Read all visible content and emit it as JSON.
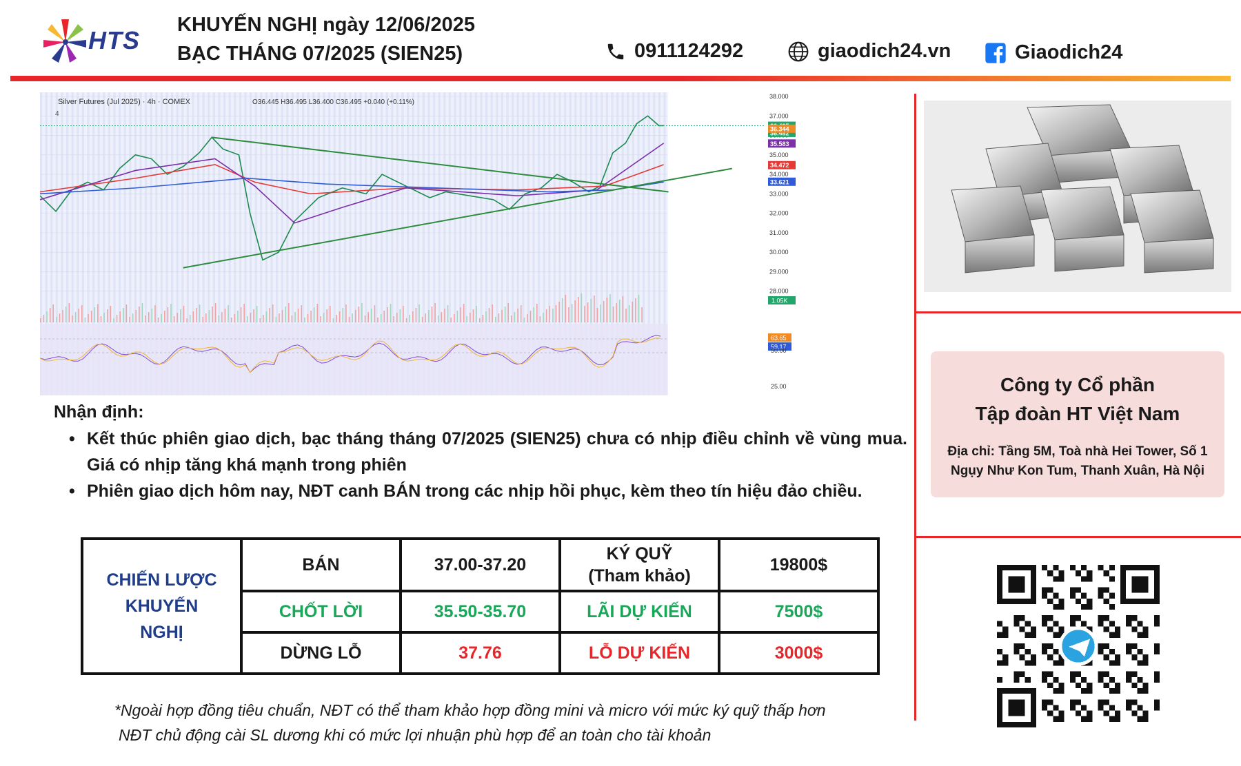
{
  "header": {
    "logo_text": "HTS",
    "title_line1": "KHUYẾN NGHỊ ngày 12/06/2025",
    "title_line2": "BẠC THÁNG 07/2025 (SIEN25)",
    "phone": "0911124292",
    "website": "giaodich24.vn",
    "facebook": "Giaodich24",
    "icons": [
      "hts-logo-icon",
      "phone-icon",
      "globe-icon",
      "facebook-icon"
    ]
  },
  "chart_data": {
    "type": "line",
    "title": "Silver Futures (Jul 2025) · 4h · COMEX",
    "legend_text": "O36.445 H36.495 L36.400 C36.495 +0.040 (+0.11%)",
    "indicator_count": "4",
    "y_ticks": [
      "38.000",
      "37.000",
      "36.000",
      "35.000",
      "34.000",
      "33.000",
      "32.000",
      "31.000",
      "30.000",
      "29.000",
      "28.000"
    ],
    "ylim": [
      27.6,
      38.0
    ],
    "price_labels": [
      {
        "value": 36.495,
        "text": "36.495",
        "color": "#22a66b"
      },
      {
        "value": 36.482,
        "text": "36.482",
        "color": "#22a66b"
      },
      {
        "value": 36.344,
        "text": "36.344",
        "color": "#f08a24"
      },
      {
        "value": 35.583,
        "text": "35.583",
        "color": "#7b2fa8"
      },
      {
        "value": 34.472,
        "text": "34.472",
        "color": "#e53935"
      },
      {
        "value": 33.621,
        "text": "33.621",
        "color": "#2f5bd8"
      }
    ],
    "volume_label": "1.05K",
    "oscillator": {
      "ticks": [
        "50.00",
        "25.00"
      ],
      "labels": [
        {
          "text": "63.65",
          "color": "#f08a24"
        },
        {
          "text": "59.17",
          "color": "#2f5bd8"
        }
      ]
    },
    "price_series": [
      [
        0,
        32.9
      ],
      [
        10,
        32.1
      ],
      [
        20,
        33.2
      ],
      [
        30,
        33.6
      ],
      [
        40,
        33.2
      ],
      [
        50,
        34.3
      ],
      [
        60,
        35.0
      ],
      [
        70,
        34.8
      ],
      [
        80,
        34.0
      ],
      [
        90,
        34.4
      ],
      [
        100,
        35.1
      ],
      [
        108,
        35.9
      ],
      [
        115,
        35.3
      ],
      [
        125,
        35.0
      ],
      [
        132,
        32.0
      ],
      [
        140,
        29.6
      ],
      [
        150,
        30.0
      ],
      [
        160,
        31.6
      ],
      [
        175,
        32.8
      ],
      [
        190,
        33.3
      ],
      [
        205,
        33.0
      ],
      [
        215,
        34.0
      ],
      [
        230,
        33.4
      ],
      [
        245,
        32.8
      ],
      [
        255,
        33.1
      ],
      [
        270,
        32.9
      ],
      [
        285,
        32.7
      ],
      [
        295,
        32.2
      ],
      [
        305,
        33.0
      ],
      [
        315,
        33.3
      ],
      [
        325,
        34.0
      ],
      [
        335,
        33.6
      ],
      [
        345,
        33.1
      ],
      [
        352,
        33.4
      ],
      [
        360,
        35.1
      ],
      [
        368,
        35.6
      ],
      [
        375,
        36.6
      ],
      [
        382,
        37.0
      ],
      [
        389,
        36.5
      ],
      [
        392,
        36.5
      ]
    ],
    "series": [
      {
        "color": "#e53935",
        "values": [
          [
            0,
            33.1
          ],
          [
            60,
            33.8
          ],
          [
            110,
            34.5
          ],
          [
            135,
            33.6
          ],
          [
            170,
            33.0
          ],
          [
            230,
            33.3
          ],
          [
            300,
            33.2
          ],
          [
            355,
            33.4
          ],
          [
            392,
            34.5
          ]
        ]
      },
      {
        "color": "#7b2fa8",
        "values": [
          [
            0,
            32.7
          ],
          [
            60,
            34.2
          ],
          [
            110,
            34.8
          ],
          [
            135,
            33.4
          ],
          [
            160,
            31.5
          ],
          [
            190,
            32.3
          ],
          [
            230,
            33.3
          ],
          [
            300,
            32.9
          ],
          [
            350,
            33.2
          ],
          [
            392,
            35.6
          ]
        ]
      },
      {
        "color": "#2f5bd8",
        "values": [
          [
            0,
            33.0
          ],
          [
            60,
            33.3
          ],
          [
            130,
            33.8
          ],
          [
            180,
            33.5
          ],
          [
            250,
            33.3
          ],
          [
            320,
            33.1
          ],
          [
            360,
            33.2
          ],
          [
            392,
            33.6
          ]
        ]
      }
    ],
    "trendlines": [
      {
        "color": "#2e8b3e",
        "from": [
          108,
          35.9
        ],
        "to": [
          395,
          33.1
        ]
      },
      {
        "color": "#2e8b3e",
        "from": [
          90,
          29.2
        ],
        "to": [
          435,
          34.3
        ]
      }
    ],
    "x_range": [
      0,
      455
    ],
    "data_end": 392
  },
  "analysis": {
    "heading": "Nhận định:",
    "bullets": [
      "Kết thúc phiên giao dịch, bạc tháng tháng 07/2025 (SIEN25) chưa có nhịp điều chỉnh về vùng mua. Giá có nhịp tăng khá mạnh trong phiên",
      "Phiên giao dịch hôm nay, NĐT canh BÁN trong các nhịp hồi phục, kèm theo tín hiệu đảo chiều."
    ]
  },
  "strategy": {
    "label": "CHIẾN LƯỢC KHUYẾN NGHỊ",
    "rows": [
      {
        "action": "BÁN",
        "price": "37.00-37.20",
        "metric_label": "KÝ QUỸ (Tham khảo)",
        "metric_value": "19800$"
      },
      {
        "action": "CHỐT LỜI",
        "price": "35.50-35.70",
        "metric_label": "LÃI DỰ KIẾN",
        "metric_value": "7500$"
      },
      {
        "action": "DỪNG LỖ",
        "price": "37.76",
        "metric_label": "LỖ DỰ KIẾN",
        "metric_value": "3000$"
      }
    ]
  },
  "notes": [
    "*Ngoài hợp đồng tiêu chuẩn, NĐT có thể tham khảo hợp đồng mini và micro với mức ký quỹ thấp hơn",
    "NĐT chủ động cài SL dương khi có mức lợi nhuận phù hợp để an toàn cho tài khoản"
  ],
  "company": {
    "name_line1": "Công ty Cổ phần",
    "name_line2": "Tập đoàn HT Việt Nam",
    "address": "Địa chỉ: Tầng 5M, Toà nhà Hei Tower, Số 1 Ngụy Như Kon Tum, Thanh Xuân, Hà Nội"
  },
  "colors": {
    "accent_red": "#e8262a",
    "accent_orange": "#f7b733",
    "brand_blue": "#2a3b8f",
    "profit_green": "#19a85a",
    "loss_red": "#e8262a"
  }
}
